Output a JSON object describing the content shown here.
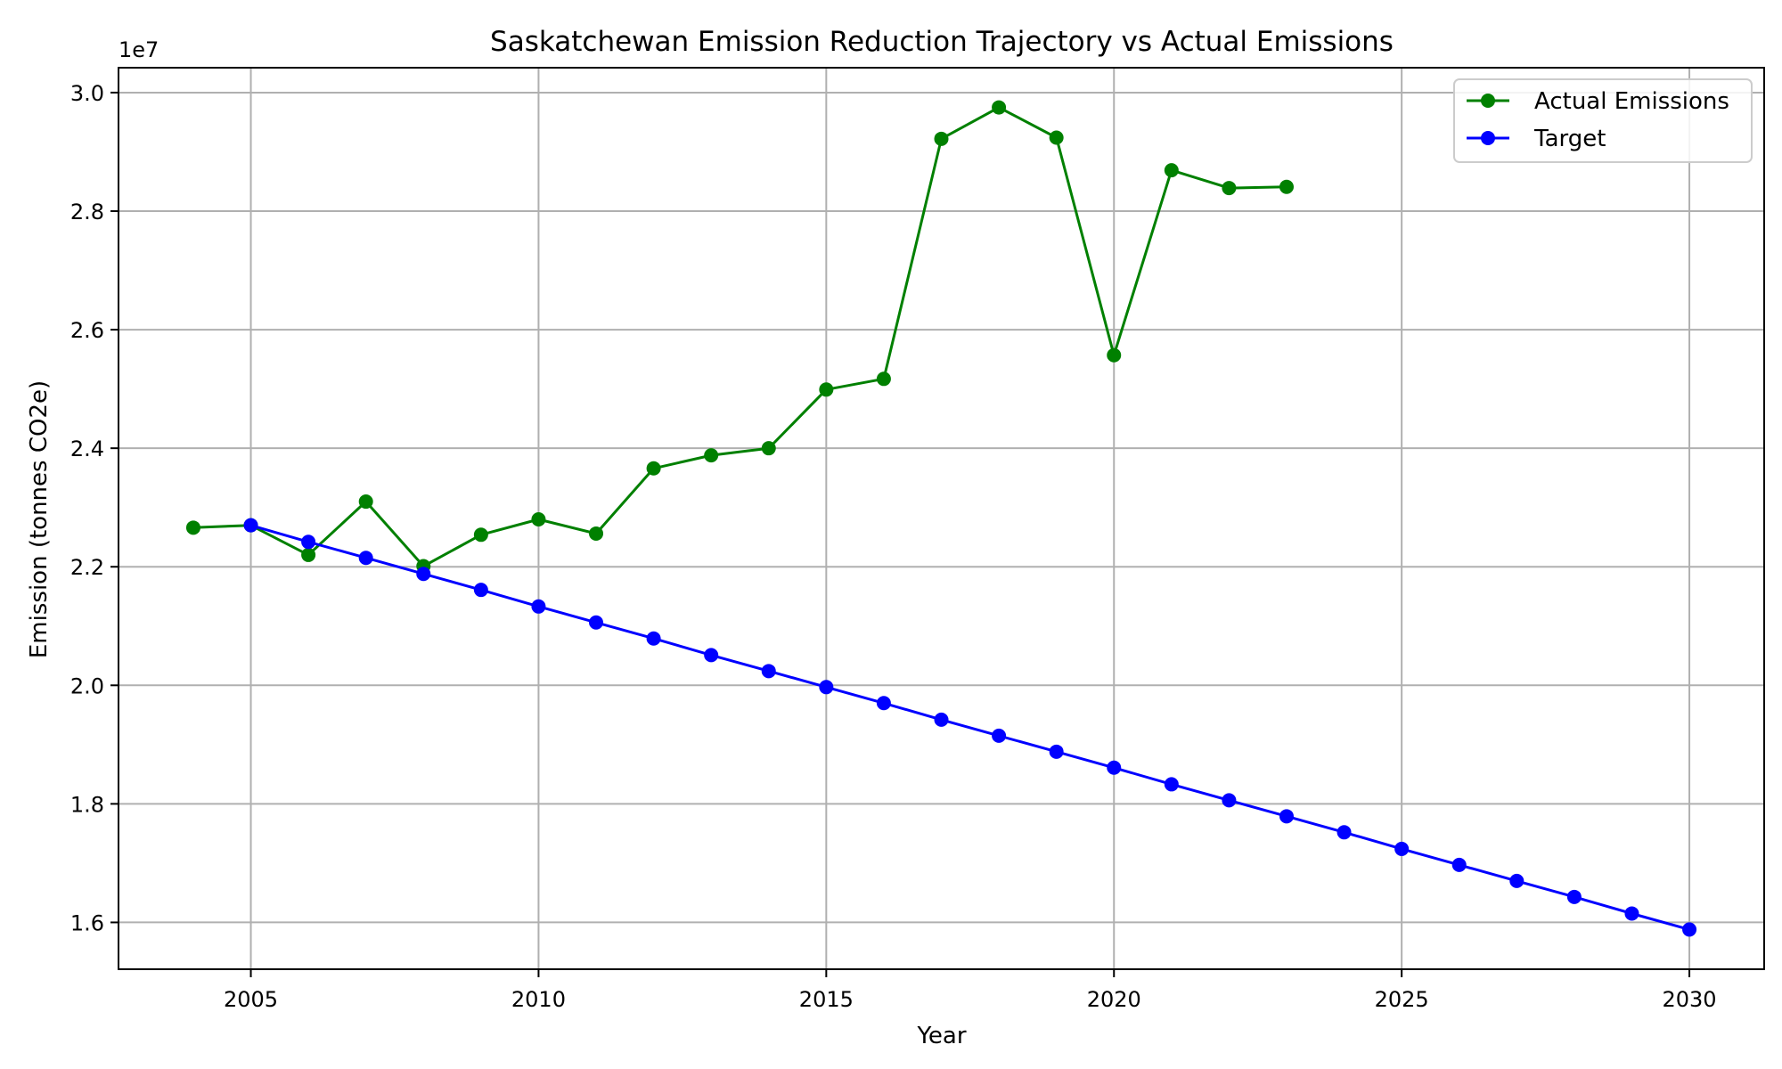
{
  "chart_data": {
    "type": "line",
    "title": "Saskatchewan Emission Reduction Trajectory vs Actual Emissions",
    "xlabel": "Year",
    "ylabel": "Emission (tonnes CO2e)",
    "y_offset_label": "1e7",
    "xlim": [
      2002.7,
      2031.3
    ],
    "ylim": [
      15210000,
      30420000
    ],
    "xticks": [
      2005,
      2010,
      2015,
      2020,
      2025,
      2030
    ],
    "xtick_labels": [
      "2005",
      "2010",
      "2015",
      "2020",
      "2025",
      "2030"
    ],
    "yticks": [
      16000000,
      18000000,
      20000000,
      22000000,
      24000000,
      26000000,
      28000000,
      30000000
    ],
    "ytick_labels": [
      "1.6",
      "1.8",
      "2.0",
      "2.2",
      "2.4",
      "2.6",
      "2.8",
      "3.0"
    ],
    "grid": true,
    "legend_position": "top-right",
    "series": [
      {
        "name": "Actual Emissions",
        "color": "#008000",
        "x": [
          2004,
          2005,
          2006,
          2007,
          2008,
          2009,
          2010,
          2011,
          2012,
          2013,
          2014,
          2015,
          2016,
          2017,
          2018,
          2019,
          2020,
          2021,
          2022,
          2023
        ],
        "values": [
          22660000,
          22700000,
          22200000,
          23100000,
          22010000,
          22540000,
          22800000,
          22560000,
          23660000,
          23880000,
          24000000,
          24990000,
          25170000,
          29220000,
          29750000,
          29240000,
          25570000,
          28690000,
          28390000,
          28410000
        ]
      },
      {
        "name": "Target",
        "color": "#0000ff",
        "x": [
          2005,
          2006,
          2007,
          2008,
          2009,
          2010,
          2011,
          2012,
          2013,
          2014,
          2015,
          2016,
          2017,
          2018,
          2019,
          2020,
          2021,
          2022,
          2023,
          2024,
          2025,
          2026,
          2027,
          2028,
          2029,
          2030
        ],
        "values": [
          22700000,
          22420000,
          22150000,
          21880000,
          21610000,
          21330000,
          21060000,
          20790000,
          20510000,
          20240000,
          19970000,
          19700000,
          19420000,
          19150000,
          18880000,
          18610000,
          18330000,
          18060000,
          17790000,
          17520000,
          17240000,
          16970000,
          16700000,
          16430000,
          16150000,
          15880000
        ]
      }
    ]
  }
}
